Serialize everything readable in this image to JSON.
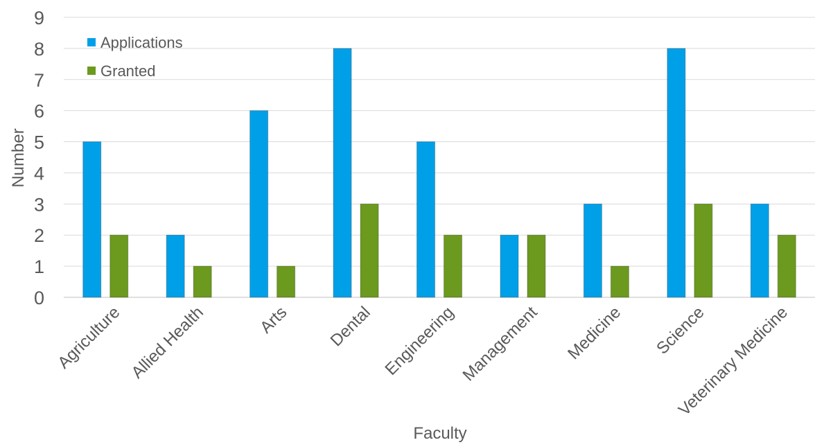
{
  "chart_data": {
    "type": "bar",
    "title": "",
    "xlabel": "Faculty",
    "ylabel": "Number",
    "ylim": [
      0,
      9
    ],
    "yticks": [
      0,
      1,
      2,
      3,
      4,
      5,
      6,
      7,
      8,
      9
    ],
    "grid": true,
    "legend_position": "top-left",
    "categories": [
      "Agriculture",
      "Allied Health",
      "Arts",
      "Dental",
      "Engineering",
      "Management",
      "Medicine",
      "Science",
      "Veterinary Medicine"
    ],
    "series": [
      {
        "name": "Applications",
        "color": "#00a0e9",
        "values": [
          5,
          2,
          6,
          8,
          5,
          2,
          3,
          8,
          3
        ]
      },
      {
        "name": "Granted",
        "color": "#6b9a1e",
        "values": [
          2,
          1,
          1,
          3,
          2,
          2,
          1,
          3,
          2
        ]
      }
    ]
  }
}
